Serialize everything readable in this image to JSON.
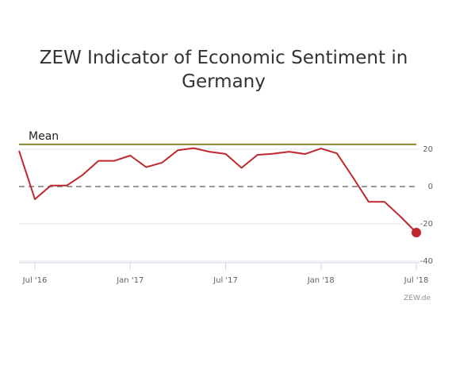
{
  "chart_data": {
    "type": "line",
    "title": [
      "ZEW Indicator of Economic Sentiment in",
      "Germany"
    ],
    "xlabel": "",
    "ylabel": "",
    "ylim": [
      -40,
      20
    ],
    "yticks": [
      20,
      0,
      -20,
      -40
    ],
    "ytick_labels": [
      "20",
      "0",
      "-20",
      "-40"
    ],
    "y_axis_side": "right",
    "x_ticks": [
      {
        "x": "2016-07",
        "label": "Jul '16"
      },
      {
        "x": "2017-01",
        "label": "Jan '17"
      },
      {
        "x": "2017-07",
        "label": "Jul '17"
      },
      {
        "x": "2018-01",
        "label": "Jan '18"
      },
      {
        "x": "2018-07",
        "label": "Jul '18"
      }
    ],
    "xlim": [
      "2016-06",
      "2018-07"
    ],
    "grid": true,
    "series": [
      {
        "color": "#c0272d",
        "x": [
          "2016-06",
          "2016-07",
          "2016-08",
          "2016-09",
          "2016-10",
          "2016-11",
          "2016-12",
          "2017-01",
          "2017-02",
          "2017-03",
          "2017-04",
          "2017-05",
          "2017-06",
          "2017-07",
          "2017-08",
          "2017-09",
          "2017-10",
          "2017-11",
          "2017-12",
          "2018-01",
          "2018-02",
          "2018-03",
          "2018-04",
          "2018-05",
          "2018-06",
          "2018-07"
        ],
        "values": [
          19.2,
          -6.8,
          0.5,
          0.5,
          6.2,
          13.8,
          13.8,
          16.6,
          10.4,
          12.8,
          19.5,
          20.6,
          18.6,
          17.5,
          10.0,
          17.0,
          17.6,
          18.7,
          17.4,
          20.4,
          17.8,
          5.1,
          -8.2,
          -8.2,
          -16.1,
          -24.7
        ],
        "last_point_marker": true
      }
    ],
    "reference_lines": [
      {
        "label": "Mean",
        "value": 22.6,
        "color": "#8a8530",
        "style": "solid"
      },
      {
        "label": "",
        "value": 0,
        "color": "#999999",
        "style": "dashed"
      }
    ],
    "credit": "ZEW.de"
  }
}
